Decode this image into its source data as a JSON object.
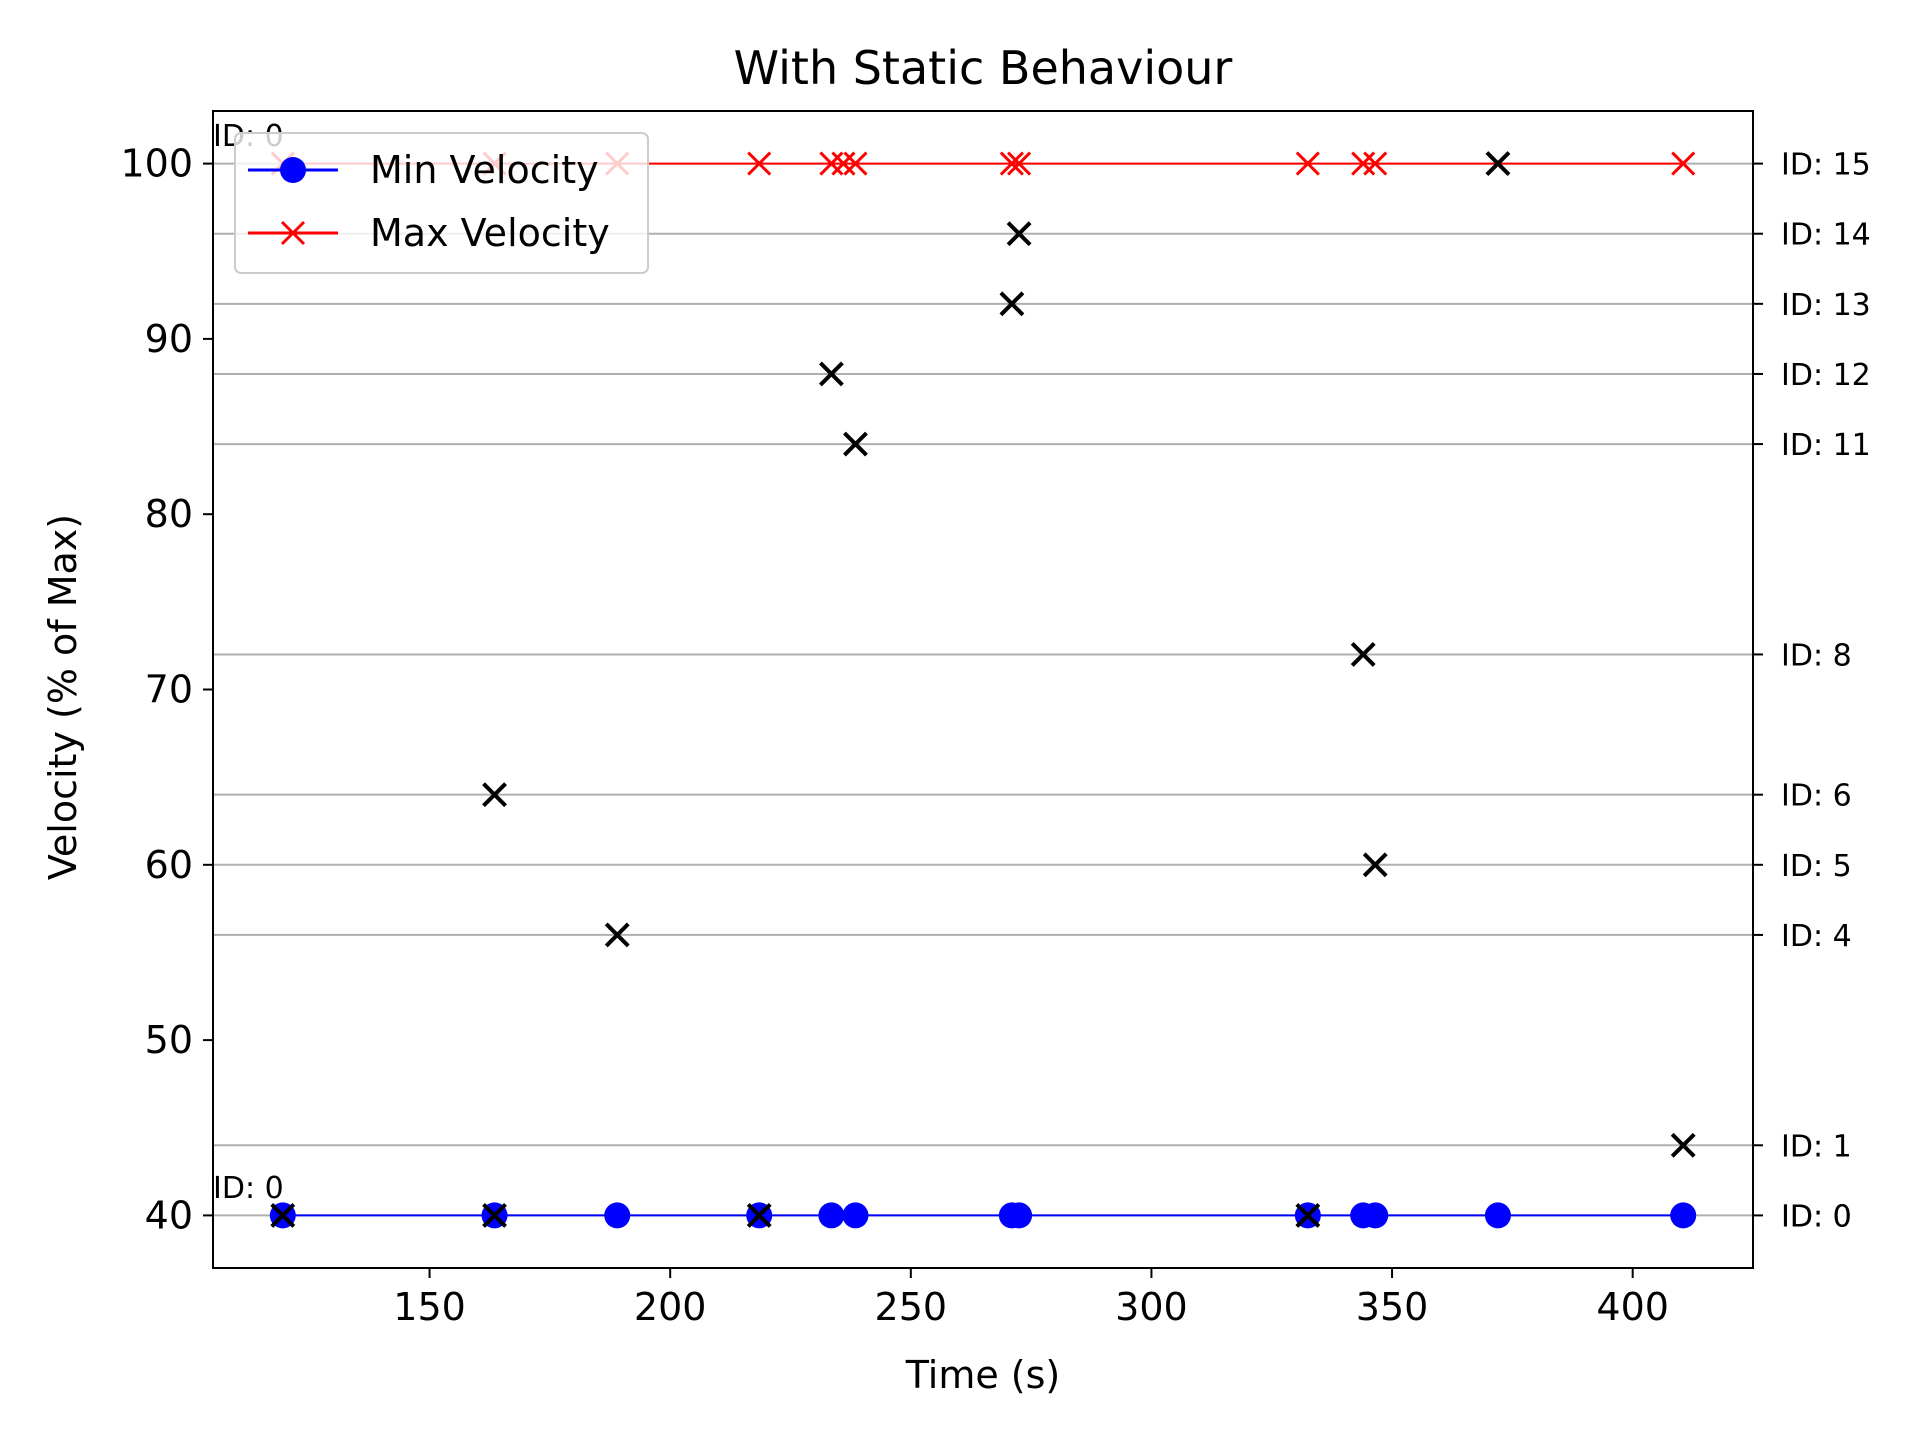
{
  "chart_data": {
    "type": "scatter",
    "title": "With Static Behaviour",
    "xlabel": "Time (s)",
    "ylabel": "Velocity (% of Max)",
    "xlim": [
      105,
      425
    ],
    "ylim": [
      37,
      103
    ],
    "x_ticks": [
      150,
      200,
      250,
      300,
      350,
      400
    ],
    "x_tick_labels": [
      "150",
      "200",
      "250",
      "300",
      "350",
      "400"
    ],
    "y_ticks": [
      40,
      50,
      60,
      70,
      80,
      90,
      100
    ],
    "y_tick_labels": [
      "40",
      "50",
      "60",
      "70",
      "80",
      "90",
      "100"
    ],
    "legend_position": "upper-left",
    "series": [
      {
        "name": "Min Velocity",
        "color": "#0000ff",
        "marker": "circle",
        "x": [
          119.5,
          163.5,
          189,
          218.5,
          233.5,
          238.5,
          271,
          272.5,
          332.5,
          344,
          346.5,
          372,
          410.5
        ],
        "y": [
          40,
          40,
          40,
          40,
          40,
          40,
          40,
          40,
          40,
          40,
          40,
          40,
          40
        ]
      },
      {
        "name": "Max Velocity",
        "color": "#ff0000",
        "marker": "x",
        "x": [
          119.5,
          163.5,
          189,
          218.5,
          233.5,
          236,
          238.5,
          271,
          272.5,
          332.5,
          344,
          346.5,
          372,
          410.5
        ],
        "y": [
          100,
          100,
          100,
          100,
          100,
          100,
          100,
          100,
          100,
          100,
          100,
          100,
          100,
          100
        ]
      }
    ],
    "threshold_points": {
      "color": "#000000",
      "marker": "x",
      "x": [
        119.5,
        163.5,
        163.5,
        189,
        218.5,
        233.5,
        238.5,
        271,
        272.5,
        332.5,
        344,
        346.5,
        372,
        410.5
      ],
      "y": [
        40,
        40,
        64,
        56,
        40,
        88,
        84,
        92,
        96,
        40,
        72,
        60,
        100,
        44
      ]
    },
    "id_lines": {
      "color": "#b0b0b0",
      "values": [
        40,
        44,
        56,
        60,
        64,
        72,
        84,
        88,
        92,
        96,
        100
      ],
      "labels": [
        "ID: 0",
        "ID: 1",
        "ID: 4",
        "ID: 5",
        "ID: 6",
        "ID: 8",
        "ID: 11",
        "ID: 12",
        "ID: 13",
        "ID: 14",
        "ID: 15"
      ]
    },
    "inline_labels": [
      {
        "x": 105,
        "y": 101,
        "text": "ID: 0"
      },
      {
        "x": 105,
        "y": 41,
        "text": "ID: 0"
      }
    ],
    "right_axis_extra_label": {
      "y": 40,
      "text": "ID: 0"
    }
  }
}
